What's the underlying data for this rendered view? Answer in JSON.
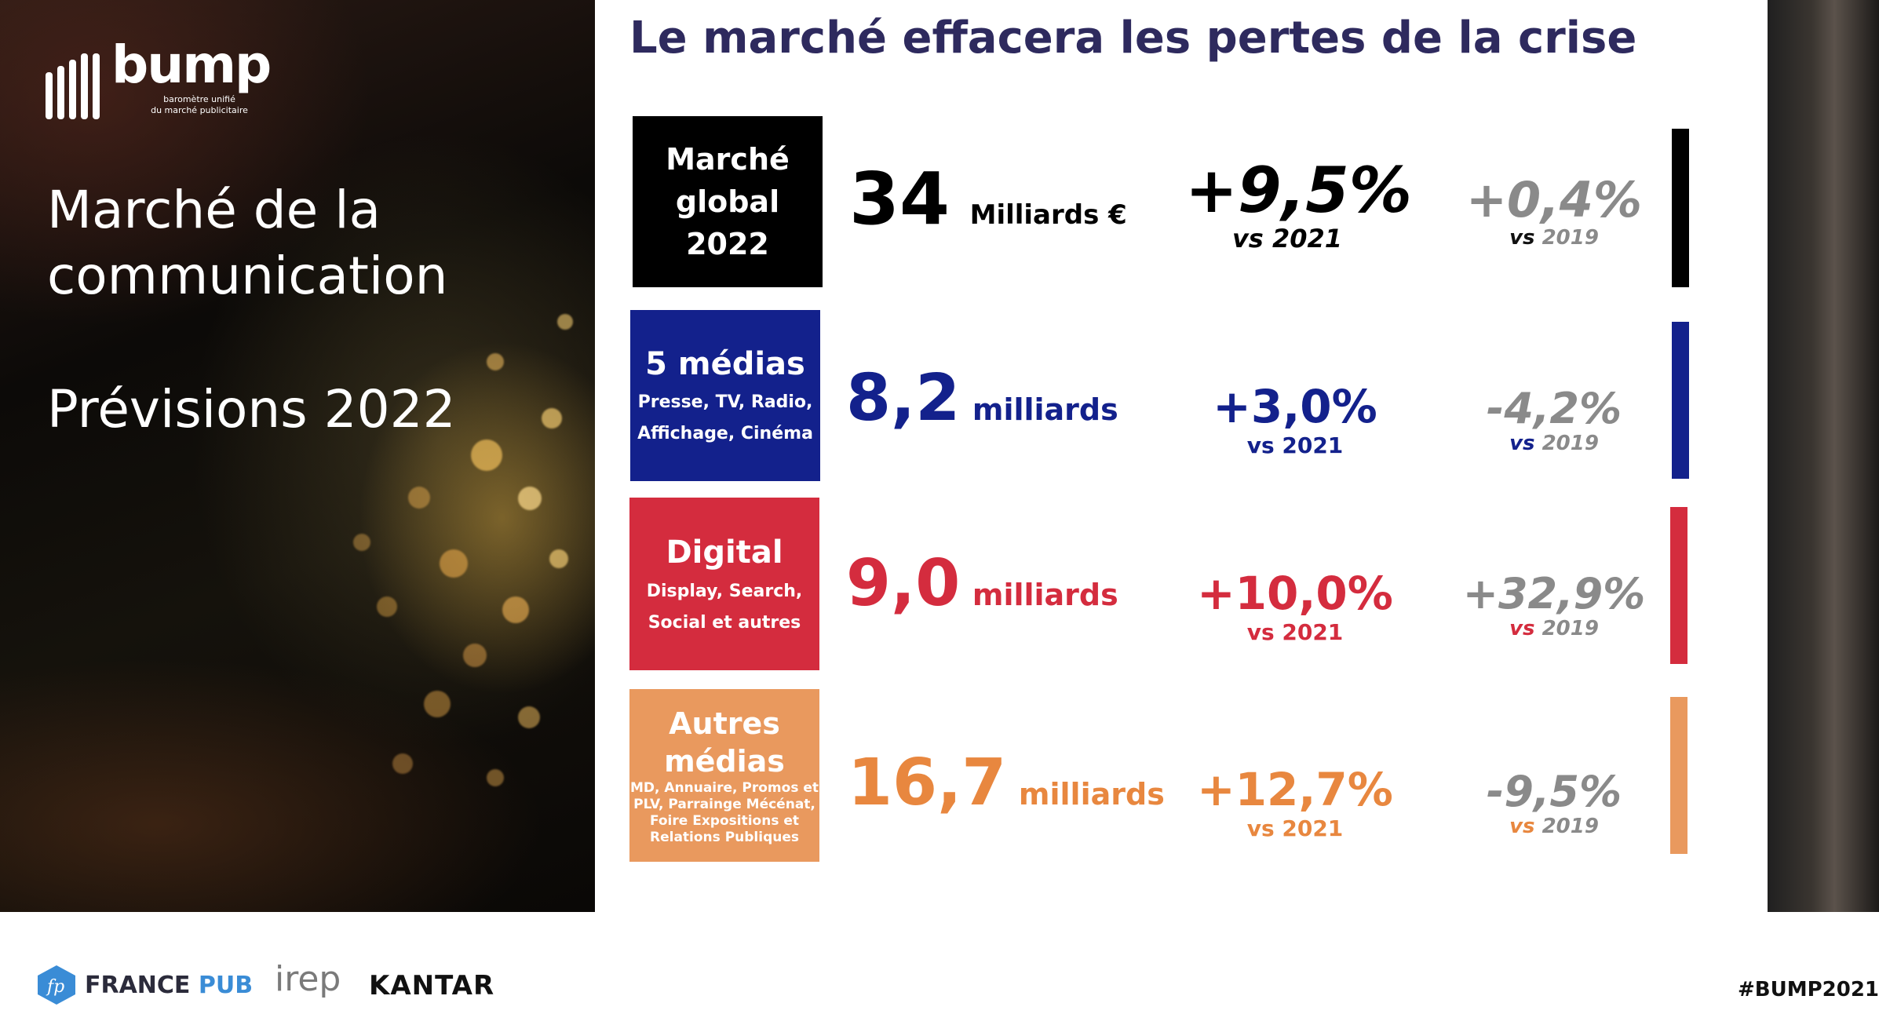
{
  "logo": {
    "word": "bump",
    "sub_line1": "baromètre unifié",
    "sub_line2": "du marché publicitaire"
  },
  "left": {
    "title_line1": "Marché de la",
    "title_line2": "communication",
    "subtitle": "Prévisions 2022"
  },
  "title": "Le marché effacera les pertes de la crise",
  "rows": [
    {
      "box_line1": "Marché",
      "box_line2": "global",
      "box_line3": "2022",
      "value": "34",
      "unit": "Milliards €",
      "pct_2021": "+9,5%",
      "vs_2021": "vs 2021",
      "pct_2019": "+0,4%",
      "vs_label": "vs",
      "vs_year": "2019",
      "color": "#000000"
    },
    {
      "box_title": "5 médias",
      "box_sub1": "Presse, TV, Radio,",
      "box_sub2": "Affichage, Cinéma",
      "value": "8,2",
      "unit": "milliards",
      "pct_2021": "+3,0%",
      "vs_2021": "vs 2021",
      "pct_2019": "-4,2%",
      "vs_label": "vs",
      "vs_year": "2019",
      "color": "#13218c"
    },
    {
      "box_title": "Digital",
      "box_sub1": "Display, Search,",
      "box_sub2": "Social et autres",
      "value": "9,0",
      "unit": "milliards",
      "pct_2021": "+10,0%",
      "vs_2021": "vs 2021",
      "pct_2019": "+32,9%",
      "vs_label": "vs",
      "vs_year": "2019",
      "color": "#d42c3e"
    },
    {
      "box_title1": "Autres",
      "box_title2": "médias",
      "box_sub1": "MD, Annuaire, Promos et",
      "box_sub2": "PLV, Parrainge Mécénat,",
      "box_sub3": "Foire Expositions et",
      "box_sub4": "Relations Publiques",
      "value": "16,7",
      "unit": "milliards",
      "pct_2021": "+12,7%",
      "vs_2021": "vs 2021",
      "pct_2019": "-9,5%",
      "vs_label": "vs",
      "vs_year": "2019",
      "color": "#e9995e",
      "text_color": "#e8873f"
    }
  ],
  "footer": {
    "france": "FRANCE",
    "pub": "PUB",
    "irep": "irep",
    "kantar": "KANTAR",
    "hashtag": "#BUMP2021",
    "fp_mark": "fp"
  }
}
